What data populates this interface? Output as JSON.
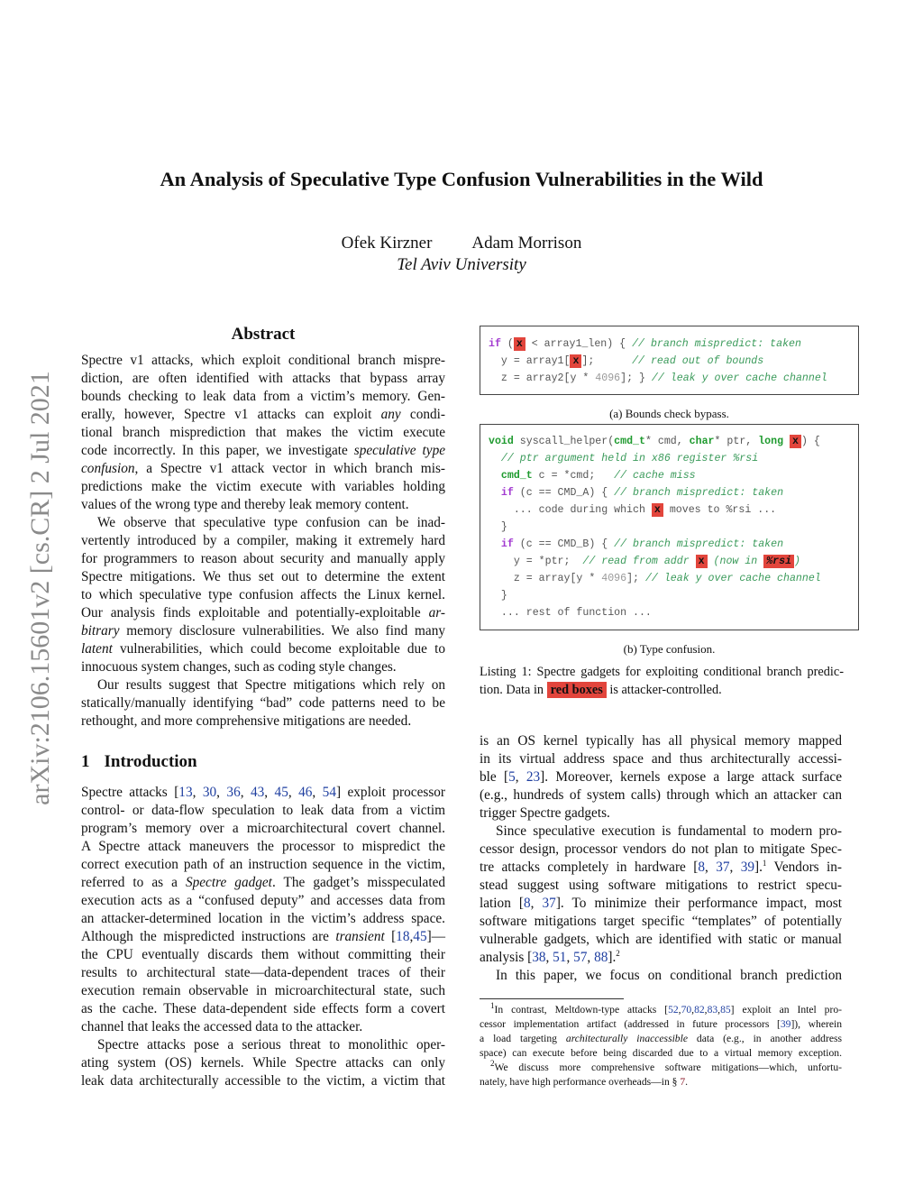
{
  "title": "An Analysis of Speculative Type Confusion Vulnerabilities in the Wild",
  "authors": [
    "Ofek Kirzner",
    "Adam Morrison"
  ],
  "affiliation": "Tel Aviv University",
  "arxiv_stamp": "arXiv:2106.15601v2  [cs.CR]  2 Jul 2021",
  "abstract": {
    "heading": "Abstract",
    "lines": [
      {
        "l": [
          "Spectre v1 attacks, which exploit conditional branch mispre-"
        ]
      },
      {
        "l": [
          "diction, are often identified with attacks that bypass array"
        ]
      },
      {
        "l": [
          "bounds checking to leak data from a victim’s memory. Gen-"
        ]
      },
      {
        "l": [
          "erally, however, Spectre v1 attacks can exploit ",
          {
            "t": "any",
            "c": "i"
          },
          " condi-"
        ]
      },
      {
        "l": [
          "tional branch misprediction that makes the victim execute"
        ]
      },
      {
        "l": [
          "code incorrectly. In this paper, we investigate ",
          {
            "t": "speculative type",
            "c": "i"
          }
        ]
      },
      {
        "l": [
          {
            "t": "confusion",
            "c": "i"
          },
          ", a Spectre v1 attack vector in which branch mis-"
        ]
      },
      {
        "l": [
          "predictions make the victim execute with variables holding"
        ]
      },
      {
        "l": [
          "values of the wrong type and thereby leak memory content."
        ],
        "last": true
      },
      {
        "l": [
          "We observe that speculative type confusion can be inad-"
        ],
        "ind": true
      },
      {
        "l": [
          "vertently introduced by a compiler, making it extremely hard"
        ]
      },
      {
        "l": [
          "for programmers to reason about security and manually apply"
        ]
      },
      {
        "l": [
          "Spectre mitigations. We thus set out to determine the extent"
        ]
      },
      {
        "l": [
          "to which speculative type confusion affects the Linux kernel."
        ]
      },
      {
        "l": [
          "Our analysis finds exploitable and potentially-exploitable ",
          {
            "t": "ar-",
            "c": "i"
          }
        ]
      },
      {
        "l": [
          {
            "t": "bitrary",
            "c": "i"
          },
          " memory disclosure vulnerabilities. We also find many"
        ]
      },
      {
        "l": [
          {
            "t": "latent",
            "c": "i"
          },
          " vulnerabilities, which could become exploitable due to"
        ]
      },
      {
        "l": [
          "innocuous system changes, such as coding style changes."
        ],
        "last": true
      },
      {
        "l": [
          "Our results suggest that Spectre mitigations which rely on"
        ],
        "ind": true
      },
      {
        "l": [
          "statically/manually identifying “bad” code patterns need to be"
        ]
      },
      {
        "l": [
          "rethought, and more comprehensive mitigations are needed."
        ],
        "last": true
      }
    ]
  },
  "intro": {
    "number": "1",
    "heading": "Introduction",
    "lines": [
      {
        "l": [
          "Spectre attacks [",
          {
            "t": "13",
            "c": "cite"
          },
          ", ",
          {
            "t": "30",
            "c": "cite"
          },
          ", ",
          {
            "t": "36",
            "c": "cite"
          },
          ", ",
          {
            "t": "43",
            "c": "cite"
          },
          ", ",
          {
            "t": "45",
            "c": "cite"
          },
          ", ",
          {
            "t": "46",
            "c": "cite"
          },
          ", ",
          {
            "t": "54",
            "c": "cite"
          },
          "] exploit processor"
        ]
      },
      {
        "l": [
          "control- or data-flow speculation to leak data from a victim"
        ]
      },
      {
        "l": [
          "program’s memory over a microarchitectural covert channel."
        ]
      },
      {
        "l": [
          "A Spectre attack maneuvers the processor to mispredict the"
        ]
      },
      {
        "l": [
          "correct execution path of an instruction sequence in the victim,"
        ]
      },
      {
        "l": [
          "referred to as a ",
          {
            "t": "Spectre gadget",
            "c": "i"
          },
          ". The gadget’s misspeculated"
        ]
      },
      {
        "l": [
          "execution acts as a “confused deputy” and accesses data from"
        ]
      },
      {
        "l": [
          "an attacker-determined location in the victim’s address space."
        ]
      },
      {
        "l": [
          "Although the mispredicted instructions are ",
          {
            "t": "transient",
            "c": "i"
          },
          " [",
          {
            "t": "18",
            "c": "cite"
          },
          ",",
          {
            "t": "45",
            "c": "cite"
          },
          "]—"
        ]
      },
      {
        "l": [
          "the CPU eventually discards them without committing their"
        ]
      },
      {
        "l": [
          "results to architectural state—data-dependent traces of their"
        ]
      },
      {
        "l": [
          "execution remain observable in microarchitectural state, such"
        ]
      },
      {
        "l": [
          "as the cache. These data-dependent side effects form a covert"
        ]
      },
      {
        "l": [
          "channel that leaks the accessed data to the attacker."
        ],
        "last": true
      },
      {
        "l": [
          "Spectre attacks pose a serious threat to monolithic oper-"
        ],
        "ind": true
      },
      {
        "l": [
          "ating system (OS) kernels. While Spectre attacks can only"
        ]
      },
      {
        "l": [
          "leak data architecturally accessible to the victim, a victim that"
        ]
      }
    ]
  },
  "right_text": {
    "lines": [
      {
        "l": [
          "is an OS kernel typically has all physical memory mapped"
        ]
      },
      {
        "l": [
          "in its virtual address space and thus architecturally accessi-"
        ]
      },
      {
        "l": [
          "ble [",
          {
            "t": "5",
            "c": "cite"
          },
          ", ",
          {
            "t": "23",
            "c": "cite"
          },
          "]. Moreover, kernels expose a large attack surface"
        ]
      },
      {
        "l": [
          "(e.g., hundreds of system calls) through which an attacker can"
        ]
      },
      {
        "l": [
          "trigger Spectre gadgets."
        ],
        "last": true
      },
      {
        "l": [
          "Since speculative execution is fundamental to modern pro-"
        ],
        "ind": true
      },
      {
        "l": [
          "cessor design, processor vendors do not plan to mitigate Spec-"
        ]
      },
      {
        "l": [
          "tre attacks completely in hardware [",
          {
            "t": "8",
            "c": "cite"
          },
          ", ",
          {
            "t": "37",
            "c": "cite"
          },
          ", ",
          {
            "t": "39",
            "c": "cite"
          },
          "].",
          {
            "t": "1",
            "c": "sup"
          },
          " Vendors in-"
        ]
      },
      {
        "l": [
          "stead suggest using software mitigations to restrict specu-"
        ]
      },
      {
        "l": [
          "lation [",
          {
            "t": "8",
            "c": "cite"
          },
          ", ",
          {
            "t": "37",
            "c": "cite"
          },
          "]. To minimize their performance impact, most"
        ]
      },
      {
        "l": [
          "software mitigations target specific “templates” of potentially"
        ]
      },
      {
        "l": [
          "vulnerable gadgets, which are identified with static or manual"
        ]
      },
      {
        "l": [
          "analysis [",
          {
            "t": "38",
            "c": "cite"
          },
          ", ",
          {
            "t": "51",
            "c": "cite"
          },
          ", ",
          {
            "t": "57",
            "c": "cite"
          },
          ", ",
          {
            "t": "88",
            "c": "cite"
          },
          "].",
          {
            "t": "2",
            "c": "sup"
          }
        ],
        "last": true
      },
      {
        "l": [
          "In this paper, we focus on conditional branch prediction"
        ],
        "ind": true
      }
    ]
  },
  "listing_a": {
    "caption": "(a) Bounds check bypass.",
    "lines": [
      [
        {
          "t": "if",
          "c": "kw"
        },
        " (",
        {
          "t": "x",
          "c": "rx"
        },
        " < array1_len) { ",
        {
          "t": "// branch mispredict: taken",
          "c": "cm"
        }
      ],
      [
        "  y = array1[",
        {
          "t": "x",
          "c": "rx"
        },
        "];      ",
        {
          "t": "// read out of bounds",
          "c": "cm"
        }
      ],
      [
        "  z = array2[y * ",
        {
          "t": "4096",
          "c": "num4"
        },
        "]; } ",
        {
          "t": "// leak y over cache channel",
          "c": "cm"
        }
      ]
    ]
  },
  "listing_b": {
    "caption": "(b) Type confusion.",
    "lines": [
      [
        {
          "t": "void",
          "c": "ty"
        },
        " syscall_helper(",
        {
          "t": "cmd_t",
          "c": "ty"
        },
        "* cmd, ",
        {
          "t": "char",
          "c": "ty"
        },
        "* ptr, ",
        {
          "t": "long",
          "c": "ty"
        },
        " ",
        {
          "t": "x",
          "c": "rx"
        },
        ") {"
      ],
      [
        "  ",
        {
          "t": "// ptr argument held in x86 register %rsi",
          "c": "cm"
        }
      ],
      [
        "  ",
        {
          "t": "cmd_t",
          "c": "ty"
        },
        " c = *cmd;   ",
        {
          "t": "// cache miss",
          "c": "cm"
        }
      ],
      [
        "  ",
        {
          "t": "if",
          "c": "kw"
        },
        " (c == CMD_A) { ",
        {
          "t": "// branch mispredict: taken",
          "c": "cm"
        }
      ],
      [
        "    ... code during which ",
        {
          "t": "x",
          "c": "rx"
        },
        " moves to %rsi ..."
      ],
      [
        "  }"
      ],
      [
        "  ",
        {
          "t": "if",
          "c": "kw"
        },
        " (c == CMD_B) { ",
        {
          "t": "// branch mispredict: taken",
          "c": "cm"
        }
      ],
      [
        "    y = *ptr;  ",
        {
          "t": "// read from addr ",
          "c": "cm"
        },
        {
          "t": "x",
          "c": "rx"
        },
        {
          "t": " (now in ",
          "c": "cm"
        },
        {
          "t": "%rsi",
          "c": "rx i"
        },
        {
          "t": ")",
          "c": "cm"
        }
      ],
      [
        "    z = array[y * ",
        {
          "t": "4096",
          "c": "num4"
        },
        "]; ",
        {
          "t": "// leak y over cache channel",
          "c": "cm"
        }
      ],
      [
        "  }"
      ],
      [
        "  ... rest of function ..."
      ]
    ]
  },
  "listing_caption": {
    "lines": [
      {
        "l": [
          "Listing 1: Spectre gadgets for exploiting conditional branch predic-"
        ]
      },
      {
        "l": [
          "tion. Data in ",
          {
            "t": "red boxes",
            "c": "redbox"
          },
          " is attacker-controlled."
        ],
        "last": true
      }
    ]
  },
  "footnotes": {
    "lines": [
      {
        "l": [
          {
            "t": "1",
            "c": "sup"
          },
          "In contrast, Meltdown-type attacks [",
          {
            "t": "52",
            "c": "cite"
          },
          ",",
          {
            "t": "70",
            "c": "cite"
          },
          ",",
          {
            "t": "82",
            "c": "cite"
          },
          ",",
          {
            "t": "83",
            "c": "cite"
          },
          ",",
          {
            "t": "85",
            "c": "cite"
          },
          "] exploit an Intel pro-"
        ],
        "ind": true
      },
      {
        "l": [
          "cessor implementation artifact (addressed in future processors [",
          {
            "t": "39",
            "c": "cite"
          },
          "]), wherein"
        ]
      },
      {
        "l": [
          "a load targeting ",
          {
            "t": "architecturally inaccessible",
            "c": "i"
          },
          " data (e.g., in another address"
        ]
      },
      {
        "l": [
          "space) can execute before being discarded due to a virtual memory exception."
        ]
      },
      {
        "l": [
          {
            "t": "2",
            "c": "sup"
          },
          "We discuss more comprehensive software mitigations—which, unfortu-"
        ],
        "ind": true
      },
      {
        "l": [
          "nately, have high performance overheads—in § ",
          {
            "t": "7",
            "c": "ref"
          },
          "."
        ],
        "last": true
      }
    ]
  },
  "colors": {
    "red_box": "#e2453c",
    "citation": "#1f3fa0",
    "keyword": "#a23ad0",
    "type": "#1e9a2e",
    "comment": "#3a9a5a"
  }
}
